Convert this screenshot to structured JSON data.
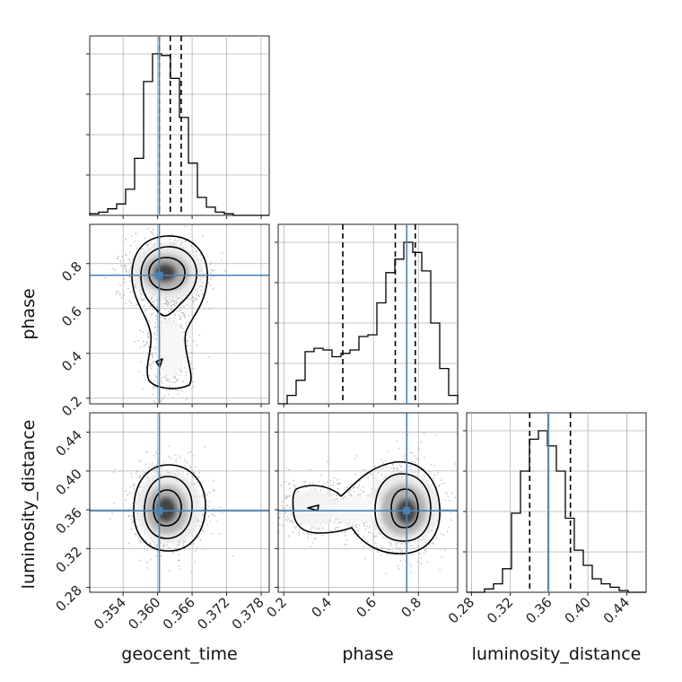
{
  "chart_data": {
    "type": "corner",
    "parameters": [
      "geocent_time",
      "phase",
      "luminosity_distance"
    ],
    "truth": {
      "geocent_time": 0.3603,
      "phase": 0.748,
      "luminosity_distance": 0.359
    },
    "truth_color": "#4682b4",
    "axes": {
      "geocent_time": {
        "range": [
          0.3482,
          0.3794
        ],
        "ticks": [
          "0.354",
          "0.360",
          "0.366",
          "0.372",
          "0.378"
        ]
      },
      "phase": {
        "range": [
          0.175,
          0.975
        ],
        "ticks": [
          "0.2",
          "0.4",
          "0.6",
          "0.8"
        ]
      },
      "luminosity_distance": {
        "range": [
          0.275,
          0.46
        ],
        "ticks": [
          "0.28",
          "0.32",
          "0.36",
          "0.40",
          "0.44"
        ]
      }
    },
    "quantiles": {
      "geocent_time": [
        0.3603,
        0.3622,
        0.3641
      ],
      "phase": [
        0.463,
        0.697,
        0.786
      ],
      "luminosity_distance": [
        0.34,
        0.359,
        0.382
      ]
    },
    "histograms": {
      "geocent_time": {
        "bin_start": 0.3482,
        "bin_width": 0.00156,
        "counts": [
          0.01,
          0.02,
          0.04,
          0.07,
          0.16,
          0.35,
          0.82,
          0.99,
          0.98,
          0.84,
          0.6,
          0.32,
          0.11,
          0.05,
          0.02,
          0.01,
          0,
          0,
          0,
          0
        ]
      },
      "phase": {
        "bin_start": 0.175,
        "bin_width": 0.04,
        "counts": [
          0,
          0.05,
          0.14,
          0.31,
          0.33,
          0.32,
          0.28,
          0.3,
          0.32,
          0.4,
          0.41,
          0.6,
          0.78,
          0.86,
          0.96,
          0.9,
          0.79,
          0.48,
          0.21,
          0.05
        ]
      },
      "luminosity_distance": {
        "bin_start": 0.275,
        "bin_width": 0.00925,
        "counts": [
          0,
          0,
          0.02,
          0.05,
          0.14,
          0.47,
          0.72,
          0.91,
          0.96,
          0.87,
          0.72,
          0.44,
          0.25,
          0.16,
          0.08,
          0.05,
          0.03,
          0.01,
          0,
          0
        ]
      }
    },
    "pairs": [
      {
        "x": "geocent_time",
        "y": "phase"
      },
      {
        "x": "geocent_time",
        "y": "luminosity_distance"
      },
      {
        "x": "phase",
        "y": "luminosity_distance"
      }
    ]
  }
}
